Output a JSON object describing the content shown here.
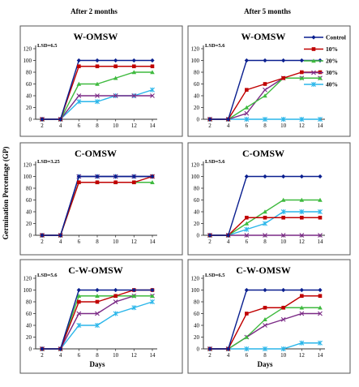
{
  "figure": {
    "column_titles": [
      "After 2 months",
      "After 5 months"
    ],
    "y_axis_title": "Germination Percentage (GP)"
  },
  "chart_data": [
    {
      "type": "line",
      "title": "W-OMSW",
      "annotation": "LSD=6.5",
      "column": "After 2 months",
      "x": [
        2,
        4,
        6,
        8,
        10,
        12,
        14
      ],
      "xlabel": "",
      "ylabel": "",
      "ylim": [
        0,
        120
      ],
      "grid": false,
      "series": [
        {
          "name": "Control",
          "values": [
            0,
            0,
            100,
            100,
            100,
            100,
            100
          ]
        },
        {
          "name": "10%",
          "values": [
            0,
            0,
            90,
            90,
            90,
            90,
            90
          ]
        },
        {
          "name": "20%",
          "values": [
            0,
            0,
            60,
            60,
            70,
            80,
            80
          ]
        },
        {
          "name": "30%",
          "values": [
            0,
            0,
            40,
            40,
            40,
            40,
            40
          ]
        },
        {
          "name": "40%",
          "values": [
            0,
            0,
            30,
            30,
            40,
            40,
            50
          ]
        }
      ]
    },
    {
      "type": "line",
      "title": "W-OMSW",
      "annotation": "LSD=5.6",
      "column": "After 5 months",
      "x": [
        2,
        4,
        6,
        8,
        10,
        12,
        14
      ],
      "xlabel": "",
      "ylabel": "",
      "ylim": [
        0,
        120
      ],
      "grid": false,
      "legend": {
        "position": "top-right",
        "entries": [
          "Control",
          "10%",
          "20%",
          "30%",
          "40%"
        ]
      },
      "series": [
        {
          "name": "Control",
          "values": [
            0,
            0,
            100,
            100,
            100,
            100,
            100
          ]
        },
        {
          "name": "10%",
          "values": [
            0,
            0,
            50,
            60,
            70,
            80,
            80
          ]
        },
        {
          "name": "20%",
          "values": [
            0,
            0,
            20,
            40,
            70,
            70,
            70
          ]
        },
        {
          "name": "30%",
          "values": [
            0,
            0,
            10,
            50,
            70,
            70,
            70
          ]
        },
        {
          "name": "40%",
          "values": [
            0,
            0,
            0,
            0,
            0,
            0,
            0
          ]
        }
      ]
    },
    {
      "type": "line",
      "title": "C-OMSW",
      "annotation": "LSD=3.25",
      "column": "After 2 months",
      "x": [
        2,
        4,
        6,
        8,
        10,
        12,
        14
      ],
      "xlabel": "",
      "ylabel": "",
      "ylim": [
        0,
        120
      ],
      "grid": false,
      "series": [
        {
          "name": "Control",
          "values": [
            0,
            0,
            100,
            100,
            100,
            100,
            100
          ]
        },
        {
          "name": "10%",
          "values": [
            0,
            0,
            90,
            90,
            90,
            90,
            100
          ]
        },
        {
          "name": "20%",
          "values": [
            0,
            0,
            90,
            90,
            90,
            90,
            90
          ]
        },
        {
          "name": "30%",
          "values": [
            0,
            0,
            100,
            100,
            100,
            100,
            100
          ]
        },
        {
          "name": "40%",
          "values": [
            0,
            0,
            100,
            100,
            100,
            100,
            100
          ]
        }
      ]
    },
    {
      "type": "line",
      "title": "C-OMSW",
      "annotation": "LSD=5.6",
      "column": "After 5 months",
      "x": [
        2,
        4,
        6,
        8,
        10,
        12,
        14
      ],
      "xlabel": "",
      "ylabel": "",
      "ylim": [
        0,
        120
      ],
      "grid": false,
      "series": [
        {
          "name": "Control",
          "values": [
            0,
            0,
            100,
            100,
            100,
            100,
            100
          ]
        },
        {
          "name": "10%",
          "values": [
            0,
            0,
            30,
            30,
            30,
            30,
            30
          ]
        },
        {
          "name": "20%",
          "values": [
            0,
            0,
            20,
            40,
            60,
            60,
            60
          ]
        },
        {
          "name": "30%",
          "values": [
            0,
            0,
            0,
            0,
            0,
            0,
            0
          ]
        },
        {
          "name": "40%",
          "values": [
            0,
            0,
            10,
            20,
            40,
            40,
            40
          ]
        }
      ]
    },
    {
      "type": "line",
      "title": "C-W-OMSW",
      "annotation": "LSD=5.6",
      "column": "After 2 months",
      "x": [
        2,
        4,
        6,
        8,
        10,
        12,
        14
      ],
      "xlabel": "Days",
      "ylabel": "",
      "ylim": [
        0,
        120
      ],
      "grid": false,
      "series": [
        {
          "name": "Control",
          "values": [
            0,
            0,
            100,
            100,
            100,
            100,
            100
          ]
        },
        {
          "name": "10%",
          "values": [
            0,
            0,
            80,
            80,
            90,
            100,
            100
          ]
        },
        {
          "name": "20%",
          "values": [
            0,
            0,
            90,
            90,
            90,
            90,
            90
          ]
        },
        {
          "name": "30%",
          "values": [
            0,
            0,
            60,
            60,
            80,
            90,
            90
          ]
        },
        {
          "name": "40%",
          "values": [
            0,
            0,
            40,
            40,
            60,
            70,
            80
          ]
        }
      ]
    },
    {
      "type": "line",
      "title": "C-W-OMSW",
      "annotation": "LSD=6.5",
      "column": "After 5 months",
      "x": [
        2,
        4,
        6,
        8,
        10,
        12,
        14
      ],
      "xlabel": "Days",
      "ylabel": "",
      "ylim": [
        0,
        120
      ],
      "grid": false,
      "series": [
        {
          "name": "Control",
          "values": [
            0,
            0,
            100,
            100,
            100,
            100,
            100
          ]
        },
        {
          "name": "10%",
          "values": [
            0,
            0,
            60,
            70,
            70,
            90,
            90
          ]
        },
        {
          "name": "20%",
          "values": [
            0,
            0,
            20,
            50,
            70,
            70,
            70
          ]
        },
        {
          "name": "30%",
          "values": [
            0,
            0,
            20,
            40,
            50,
            60,
            60
          ]
        },
        {
          "name": "40%",
          "values": [
            0,
            0,
            0,
            0,
            0,
            10,
            10
          ]
        }
      ]
    }
  ],
  "styles": {
    "Control": {
      "color": "#0a1f8f",
      "marker": "diamond"
    },
    "10%": {
      "color": "#c00000",
      "marker": "square"
    },
    "20%": {
      "color": "#3fba3f",
      "marker": "triangle"
    },
    "30%": {
      "color": "#7b2a86",
      "marker": "x"
    },
    "40%": {
      "color": "#2ab6ea",
      "marker": "star"
    }
  },
  "y_ticks": [
    0,
    20,
    40,
    60,
    80,
    100,
    120
  ]
}
